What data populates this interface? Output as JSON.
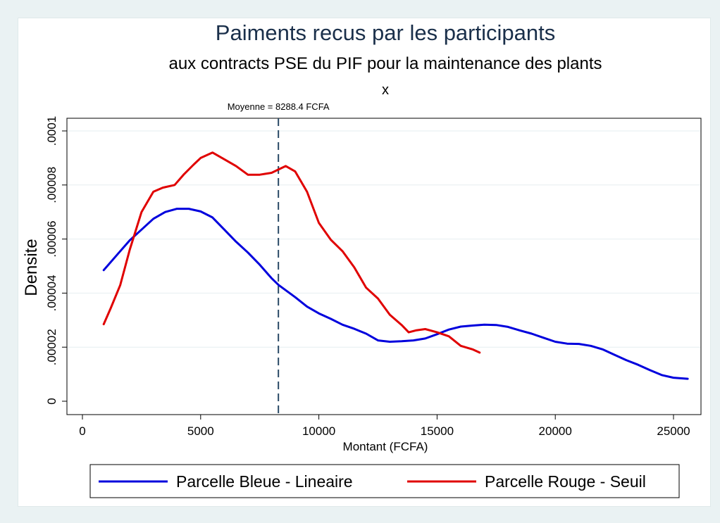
{
  "chart_data": {
    "type": "line",
    "title": "Paiments recus par les participants",
    "subtitle": "aux contracts PSE du PIF pour la maintenance des plants",
    "caption": "x",
    "xlabel": "Montant (FCFA)",
    "ylabel": "Densite",
    "xlim": [
      0,
      26000
    ],
    "ylim": [
      0,
      0.0001
    ],
    "x_ticks": [
      0,
      5000,
      10000,
      15000,
      20000,
      25000
    ],
    "x_tick_labels": [
      "0",
      "5000",
      "10000",
      "15000",
      "20000",
      "25000"
    ],
    "y_ticks": [
      0,
      2e-05,
      4e-05,
      6e-05,
      8e-05,
      0.0001
    ],
    "y_tick_labels": [
      "0",
      ".00002",
      ".00004",
      ".00006",
      ".00008",
      ".0001"
    ],
    "grid": true,
    "legend_position": "bottom",
    "reference_line": {
      "x": 8288.4,
      "label": "Moyenne = 8288.4 FCFA"
    },
    "series": [
      {
        "name": "Parcelle Bleue - Lineaire",
        "color": "#0000dd",
        "x": [
          900,
          1500,
          2000,
          2500,
          3000,
          3500,
          4000,
          4500,
          5000,
          5500,
          6000,
          6500,
          7000,
          7500,
          8000,
          8300,
          9000,
          9500,
          10000,
          10500,
          11000,
          11500,
          12000,
          12500,
          13000,
          13500,
          14000,
          14500,
          15000,
          15500,
          16000,
          16500,
          17000,
          17500,
          18000,
          18500,
          19000,
          19500,
          20000,
          20500,
          21000,
          21500,
          22000,
          22500,
          23000,
          23500,
          24000,
          24500,
          25000,
          25600
        ],
        "y": [
          4.85e-05,
          5.45e-05,
          5.95e-05,
          6.35e-05,
          6.75e-05,
          7e-05,
          7.12e-05,
          7.12e-05,
          7.02e-05,
          6.8e-05,
          6.35e-05,
          5.9e-05,
          5.5e-05,
          5.05e-05,
          4.55e-05,
          4.3e-05,
          3.85e-05,
          3.5e-05,
          3.25e-05,
          3.05e-05,
          2.83e-05,
          2.68e-05,
          2.5e-05,
          2.25e-05,
          2.2e-05,
          2.22e-05,
          2.25e-05,
          2.32e-05,
          2.48e-05,
          2.65e-05,
          2.76e-05,
          2.8e-05,
          2.83e-05,
          2.82e-05,
          2.75e-05,
          2.62e-05,
          2.5e-05,
          2.35e-05,
          2.2e-05,
          2.13e-05,
          2.12e-05,
          2.05e-05,
          1.92e-05,
          1.72e-05,
          1.52e-05,
          1.35e-05,
          1.15e-05,
          9.7e-06,
          8.7e-06,
          8.3e-06
        ]
      },
      {
        "name": "Parcelle Rouge - Seuil",
        "color": "#e00000",
        "x": [
          900,
          1200,
          1600,
          2000,
          2500,
          3000,
          3400,
          3900,
          4300,
          4700,
          5000,
          5500,
          6000,
          6500,
          7000,
          7500,
          8000,
          8600,
          9000,
          9500,
          10000,
          10500,
          11000,
          11500,
          12000,
          12500,
          13000,
          13500,
          13800,
          14100,
          14500,
          15000,
          15500,
          16000,
          16500,
          16800
        ],
        "y": [
          2.85e-05,
          3.45e-05,
          4.3e-05,
          5.6e-05,
          7e-05,
          7.75e-05,
          7.9e-05,
          8e-05,
          8.4e-05,
          8.75e-05,
          9e-05,
          9.2e-05,
          8.95e-05,
          8.7e-05,
          8.38e-05,
          8.38e-05,
          8.45e-05,
          8.7e-05,
          8.5e-05,
          7.75e-05,
          6.6e-05,
          5.98e-05,
          5.55e-05,
          4.95e-05,
          4.2e-05,
          3.8e-05,
          3.2e-05,
          2.82e-05,
          2.55e-05,
          2.62e-05,
          2.67e-05,
          2.55e-05,
          2.4e-05,
          2.05e-05,
          1.92e-05,
          1.8e-05
        ]
      }
    ]
  }
}
